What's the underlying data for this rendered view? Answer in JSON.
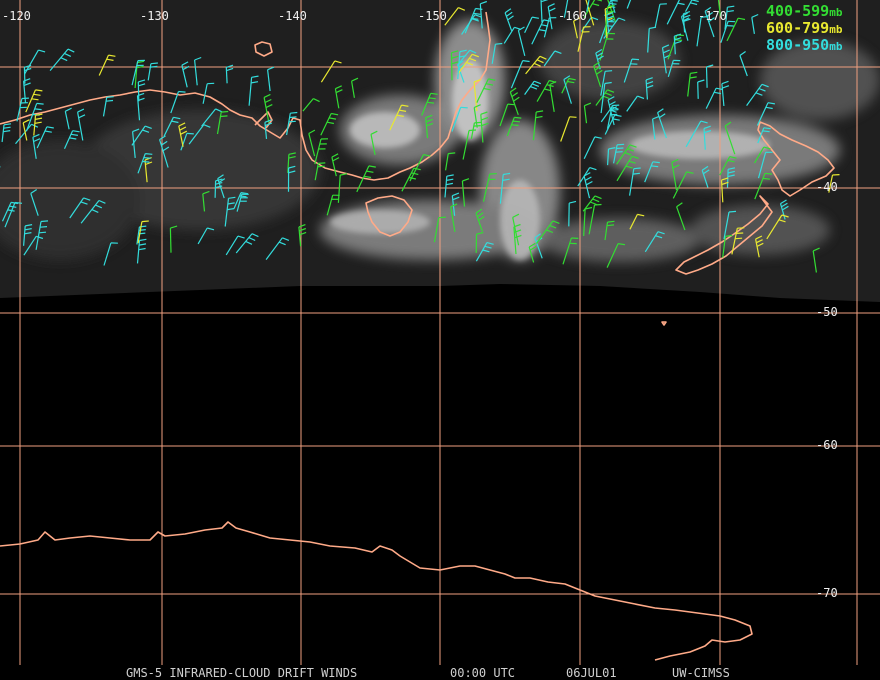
{
  "longitude_labels": [
    "-120",
    "-130",
    "-140",
    "-150",
    "-160",
    "-170"
  ],
  "latitude_labels": [
    "-40",
    "-50",
    "-60",
    "-70"
  ],
  "legend": [
    {
      "text": "400-599",
      "unit": "mb",
      "color": "#33dd33"
    },
    {
      "text": "600-799",
      "unit": "mb",
      "color": "#e8e830"
    },
    {
      "text": "800-950",
      "unit": "mb",
      "color": "#33dddd"
    }
  ],
  "caption": {
    "product": "GMS-5 INFRARED-CLOUD DRIFT WINDS",
    "time": "00:00 UTC",
    "date": "06JUL01",
    "source": "UW-CIMSS"
  },
  "colors": {
    "grid": "#f0a080",
    "coast": "#ffaa88",
    "wind_high": "#33dd33",
    "wind_mid": "#e8e830",
    "wind_low": "#33dddd"
  }
}
